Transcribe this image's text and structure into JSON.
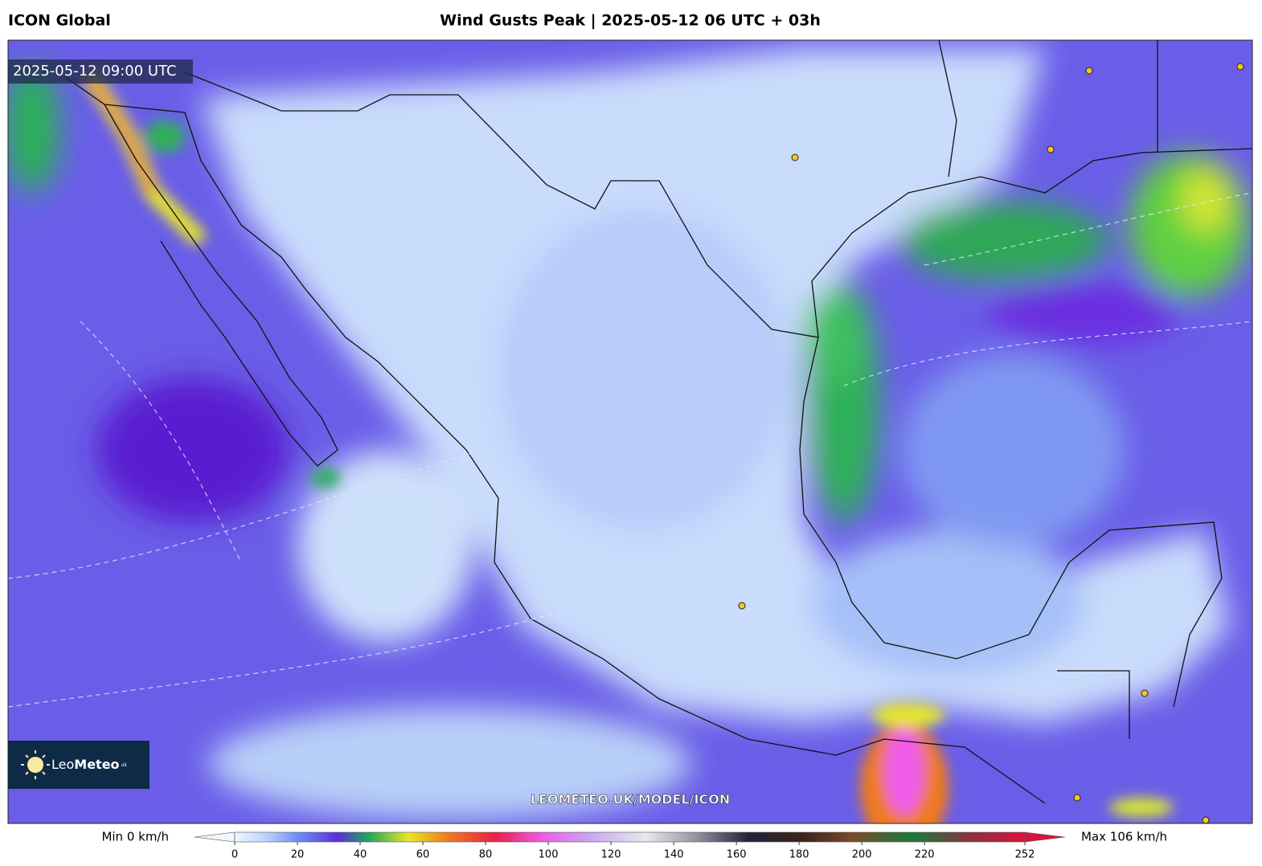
{
  "header": {
    "model": "ICON Global",
    "title": "Wind Gusts Peak | 2025-05-12 06 UTC + 03h"
  },
  "map": {
    "valid_time": "2025-05-12 09:00 UTC",
    "watermark": "LEOMETEO.UK/MODEL/ICON",
    "logo": {
      "leo": "Leo",
      "meteo": "Meteo",
      "suffix": "uk"
    }
  },
  "colorbar": {
    "min_label": "Min 0 km/h",
    "max_label": "Max 106 km/h",
    "range": [
      0,
      252
    ],
    "ticks": [
      0,
      20,
      40,
      60,
      80,
      100,
      120,
      140,
      160,
      180,
      200,
      220,
      252
    ]
  }
}
